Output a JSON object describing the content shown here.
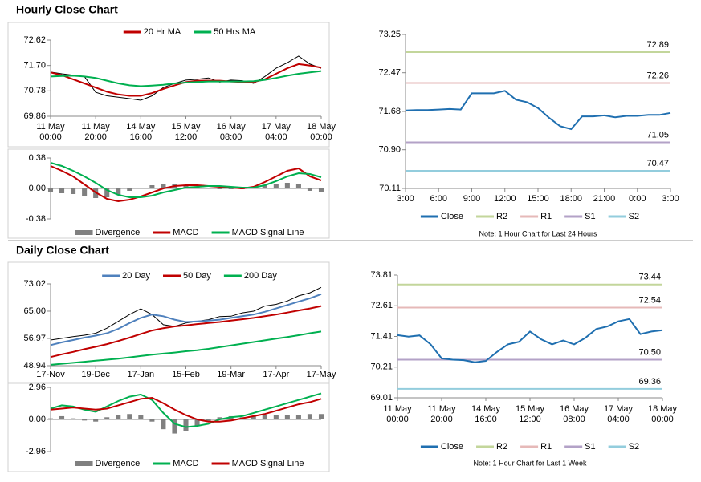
{
  "headings": [
    "Hourly Close Chart",
    "Daily Close Chart"
  ],
  "chart_data": [
    {
      "type": "line",
      "categories": [
        [
          "11 May",
          "00:00"
        ],
        null,
        null,
        null,
        [
          "11 May",
          "20:00"
        ],
        null,
        null,
        null,
        [
          "14 May",
          "16:00"
        ],
        null,
        null,
        null,
        [
          "15 May",
          "12:00"
        ],
        null,
        null,
        null,
        [
          "16 May",
          "08:00"
        ],
        null,
        null,
        null,
        [
          "17 May",
          "04:00"
        ],
        null,
        null,
        null,
        [
          "18 May",
          "00:00"
        ]
      ],
      "series": [
        {
          "color": "#000000",
          "values": [
            71.46,
            71.4,
            71.35,
            71.3,
            70.73,
            70.6,
            70.55,
            70.5,
            70.44,
            70.6,
            70.9,
            71.05,
            71.17,
            71.2,
            71.25,
            71.1,
            71.17,
            71.15,
            71.05,
            71.3,
            71.6,
            71.8,
            72.04,
            71.75,
            71.6
          ]
        },
        {
          "name": "20 Hr MA",
          "color": "#c00000",
          "values": [
            71.45,
            71.35,
            71.2,
            71.05,
            70.9,
            70.75,
            70.65,
            70.6,
            70.6,
            70.7,
            70.85,
            70.98,
            71.1,
            71.15,
            71.15,
            71.15,
            71.12,
            71.1,
            71.1,
            71.2,
            71.4,
            71.6,
            71.75,
            71.7,
            71.62
          ]
        },
        {
          "name": "50 Hrs MA",
          "color": "#00b050",
          "values": [
            71.3,
            71.32,
            71.33,
            71.3,
            71.25,
            71.15,
            71.05,
            70.98,
            70.95,
            70.97,
            71.0,
            71.05,
            71.08,
            71.1,
            71.12,
            71.12,
            71.12,
            71.12,
            71.13,
            71.18,
            71.25,
            71.33,
            71.4,
            71.45,
            71.5
          ]
        }
      ],
      "ylim": [
        69.86,
        72.62
      ],
      "yticks": [
        69.86,
        70.78,
        {
          "value": 71.7,
          "label": "71.70"
        },
        72.62
      ]
    },
    {
      "type": "macd",
      "series": [
        {
          "name": "Divergence",
          "kind": "bar",
          "color": "#808080",
          "values": [
            -0.04,
            -0.06,
            -0.07,
            -0.1,
            -0.12,
            -0.11,
            -0.08,
            -0.03,
            0.01,
            0.04,
            0.05,
            0.05,
            0.03,
            0.02,
            0,
            -0.01,
            -0.01,
            -0.01,
            0.01,
            0.04,
            0.06,
            0.07,
            0.06,
            -0.03,
            -0.04
          ]
        },
        {
          "name": "MACD",
          "kind": "line",
          "color": "#c00000",
          "values": [
            0.28,
            0.22,
            0.15,
            0.05,
            -0.05,
            -0.13,
            -0.16,
            -0.14,
            -0.1,
            -0.05,
            0.0,
            0.03,
            0.04,
            0.04,
            0.03,
            0.02,
            0.01,
            0.0,
            0.02,
            0.08,
            0.15,
            0.22,
            0.25,
            0.15,
            0.1
          ]
        },
        {
          "name": "MACD Signal Line",
          "kind": "line",
          "color": "#00b050",
          "values": [
            0.32,
            0.28,
            0.22,
            0.15,
            0.07,
            -0.02,
            -0.08,
            -0.11,
            -0.11,
            -0.09,
            -0.05,
            -0.02,
            0.01,
            0.02,
            0.03,
            0.03,
            0.02,
            0.01,
            0.01,
            0.04,
            0.09,
            0.15,
            0.19,
            0.18,
            0.14
          ]
        }
      ],
      "ylim": [
        -0.38,
        0.38
      ],
      "yticks": [
        -0.38,
        {
          "value": 0,
          "label": "0.00"
        },
        0.38
      ]
    },
    {
      "type": "pivot",
      "categories": [
        "3:00",
        null,
        null,
        "6:00",
        null,
        null,
        "9:00",
        null,
        null,
        "12:00",
        null,
        null,
        "15:00",
        null,
        null,
        "18:00",
        null,
        null,
        "21:00",
        null,
        null,
        "0:00",
        null,
        null,
        "3:00"
      ],
      "series": [
        {
          "name": "Close",
          "color": "#1f6fb0",
          "values": [
            71.7,
            71.71,
            71.71,
            71.72,
            71.73,
            71.72,
            72.05,
            72.05,
            72.05,
            72.1,
            71.92,
            71.87,
            71.75,
            71.55,
            71.38,
            71.32,
            71.58,
            71.58,
            71.6,
            71.56,
            71.59,
            71.59,
            71.61,
            71.61,
            71.65
          ]
        },
        {
          "name": "R2",
          "color": "#c3d69b",
          "value": 72.89
        },
        {
          "name": "R1",
          "color": "#e6b9b8",
          "value": 72.26
        },
        {
          "name": "S1",
          "color": "#b3a2c7",
          "value": 71.05
        },
        {
          "name": "S2",
          "color": "#93cddd",
          "value": 70.47
        }
      ],
      "ylim": [
        70.11,
        73.25
      ],
      "yticks": [
        70.11,
        {
          "value": 70.9,
          "label": "70.90"
        },
        71.68,
        72.47,
        73.25
      ],
      "note": "Note: 1 Hour Chart for Last 24 Hours"
    },
    {
      "type": "line",
      "categories": [
        "17-Nov",
        null,
        null,
        null,
        "19-Dec",
        null,
        null,
        null,
        "17-Jan",
        null,
        null,
        null,
        "15-Feb",
        null,
        null,
        null,
        "19-Mar",
        null,
        null,
        null,
        "17-Apr",
        null,
        null,
        null,
        "17-May"
      ],
      "series": [
        {
          "color": "#000000",
          "values": [
            56.5,
            57.0,
            57.5,
            57.9,
            58.5,
            60.0,
            62.0,
            64.0,
            65.7,
            64.0,
            61.0,
            60.5,
            61.5,
            62.0,
            62.5,
            63.4,
            63.5,
            64.5,
            65.0,
            66.5,
            67.0,
            68.0,
            69.5,
            70.4,
            72.0
          ]
        },
        {
          "name": "20 Day",
          "color": "#4f81bd",
          "values": [
            55.0,
            55.8,
            56.5,
            57.2,
            57.8,
            58.5,
            59.8,
            61.5,
            63.0,
            64.0,
            63.5,
            62.5,
            61.8,
            62.0,
            62.2,
            62.5,
            63.0,
            63.5,
            64.0,
            64.8,
            65.8,
            66.8,
            67.8,
            68.8,
            70.0
          ]
        },
        {
          "name": "50 Day",
          "color": "#c00000",
          "values": [
            51.5,
            52.3,
            53.0,
            53.8,
            54.5,
            55.3,
            56.2,
            57.2,
            58.3,
            59.3,
            60.0,
            60.5,
            60.8,
            61.2,
            61.5,
            61.8,
            62.2,
            62.6,
            63.0,
            63.5,
            64.0,
            64.6,
            65.2,
            65.8,
            66.5
          ]
        },
        {
          "name": "200 Day",
          "color": "#00b050",
          "values": [
            49.2,
            49.5,
            49.8,
            50.1,
            50.4,
            50.7,
            51.0,
            51.4,
            51.8,
            52.2,
            52.5,
            52.8,
            53.2,
            53.5,
            53.9,
            54.4,
            54.9,
            55.4,
            55.9,
            56.4,
            56.9,
            57.4,
            57.9,
            58.5,
            59.0
          ]
        }
      ],
      "ylim": [
        48.94,
        73.02
      ],
      "yticks": [
        48.94,
        56.97,
        {
          "value": 65,
          "label": "65.00"
        },
        73.02
      ]
    },
    {
      "type": "macd",
      "series": [
        {
          "name": "Divergence",
          "kind": "bar",
          "color": "#808080",
          "values": [
            0.1,
            0.3,
            0.1,
            -0.1,
            -0.2,
            0.2,
            0.4,
            0.5,
            0.4,
            -0.2,
            -0.9,
            -1.3,
            -1.1,
            -0.6,
            -0.2,
            0.2,
            0.3,
            0.2,
            0.3,
            0.4,
            0.4,
            0.4,
            0.4,
            0.5,
            0.5
          ]
        },
        {
          "name": "MACD",
          "kind": "line",
          "color": "#00b050",
          "values": [
            1.0,
            1.3,
            1.2,
            0.9,
            0.7,
            1.2,
            1.7,
            2.1,
            2.3,
            1.8,
            0.6,
            -0.4,
            -0.7,
            -0.6,
            -0.4,
            0.0,
            0.2,
            0.3,
            0.6,
            0.9,
            1.2,
            1.5,
            1.8,
            2.1,
            2.4
          ]
        },
        {
          "name": "MACD Signal Line",
          "kind": "line",
          "color": "#c00000",
          "values": [
            0.9,
            1.0,
            1.1,
            1.0,
            0.9,
            1.0,
            1.3,
            1.6,
            1.9,
            2.0,
            1.5,
            0.9,
            0.4,
            0.0,
            -0.2,
            -0.2,
            -0.1,
            0.1,
            0.3,
            0.5,
            0.8,
            1.1,
            1.4,
            1.6,
            1.9
          ]
        }
      ],
      "ylim": [
        -2.96,
        2.96
      ],
      "yticks": [
        -2.96,
        {
          "value": 0,
          "label": "0.00"
        },
        2.96
      ]
    },
    {
      "type": "pivot",
      "categories": [
        [
          "11 May",
          "00:00"
        ],
        null,
        null,
        null,
        [
          "11 May",
          "20:00"
        ],
        null,
        null,
        null,
        [
          "14 May",
          "16:00"
        ],
        null,
        null,
        null,
        [
          "15 May",
          "12:00"
        ],
        null,
        null,
        null,
        [
          "16 May",
          "08:00"
        ],
        null,
        null,
        null,
        [
          "17 May",
          "04:00"
        ],
        null,
        null,
        null,
        [
          "18 May",
          "00:00"
        ]
      ],
      "series": [
        {
          "name": "Close",
          "color": "#1f6fb0",
          "values": [
            71.46,
            71.4,
            71.45,
            71.1,
            70.55,
            70.5,
            70.48,
            70.4,
            70.45,
            70.8,
            71.1,
            71.2,
            71.6,
            71.3,
            71.1,
            71.25,
            71.1,
            71.35,
            71.7,
            71.8,
            72.0,
            72.09,
            71.5,
            71.6,
            71.65
          ]
        },
        {
          "name": "R2",
          "color": "#c3d69b",
          "value": 73.44
        },
        {
          "name": "R1",
          "color": "#e6b9b8",
          "value": 72.54
        },
        {
          "name": "S1",
          "color": "#b3a2c7",
          "value": 70.5,
          "value_label": "70.50"
        },
        {
          "name": "S2",
          "color": "#93cddd",
          "value": 69.36
        }
      ],
      "ylim": [
        69.01,
        73.81
      ],
      "yticks": [
        69.01,
        70.21,
        71.41,
        72.61,
        73.81
      ],
      "note": "Note: 1 Hour Chart for Last 1 Week"
    }
  ]
}
